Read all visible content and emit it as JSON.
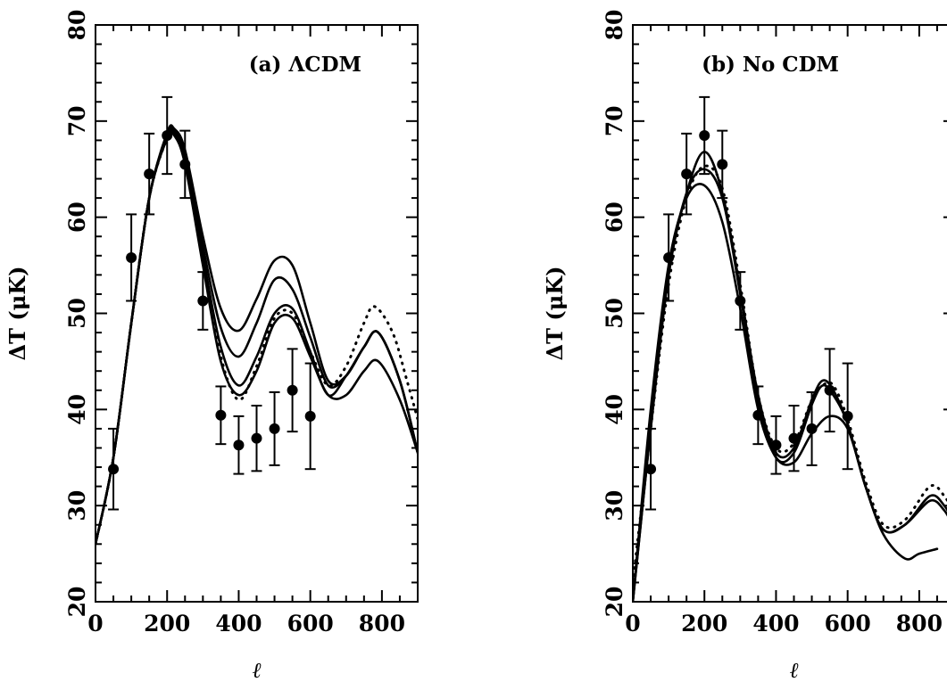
{
  "chart_data": [
    {
      "type": "line",
      "title": "(a) ΛCDM",
      "xlabel": "ℓ",
      "ylabel": "ΔT (μK)",
      "xlim": [
        0,
        900
      ],
      "ylim": [
        20,
        80
      ],
      "xticks": [
        "0",
        "200",
        "400",
        "600",
        "800"
      ],
      "yticks": [
        "20",
        "30",
        "40",
        "50",
        "60",
        "70",
        "80"
      ],
      "grid": false,
      "legend": "none",
      "data_points": {
        "x": [
          50,
          100,
          150,
          200,
          250,
          300,
          350,
          400,
          450,
          500,
          550,
          600
        ],
        "y": [
          33.8,
          55.8,
          64.5,
          68.5,
          65.5,
          51.3,
          39.4,
          36.3,
          37,
          38,
          42,
          39.3
        ],
        "err": [
          4.2,
          4.5,
          4.2,
          4,
          3.5,
          3,
          3,
          3,
          3.4,
          3.8,
          4.3,
          5.5
        ]
      },
      "series": [
        {
          "style": "solid",
          "x": [
            0,
            50,
            100,
            150,
            200,
            220,
            250,
            300,
            350,
            400,
            450,
            500,
            550,
            600,
            650,
            700,
            750,
            790,
            850,
            900
          ],
          "y": [
            26,
            35,
            49,
            62,
            68.8,
            69.2,
            67,
            58,
            50.5,
            48.2,
            51.5,
            55.5,
            55,
            49,
            43,
            43.5,
            46.5,
            48,
            43,
            35.5
          ]
        },
        {
          "style": "solid",
          "x": [
            0,
            50,
            100,
            150,
            200,
            220,
            250,
            300,
            350,
            400,
            450,
            500,
            550,
            600,
            650,
            700,
            750,
            790,
            850,
            900
          ],
          "y": [
            26,
            35,
            49,
            62,
            68.6,
            69,
            66.5,
            57,
            48.5,
            45.5,
            49,
            53.5,
            52.5,
            47.5,
            42.5,
            43.5,
            46.5,
            48,
            43,
            35.5
          ]
        },
        {
          "style": "solid",
          "x": [
            0,
            50,
            100,
            150,
            200,
            220,
            250,
            300,
            350,
            400,
            450,
            500,
            550,
            600,
            650,
            700,
            750,
            790,
            850,
            900
          ],
          "y": [
            26,
            35,
            49,
            62,
            68.4,
            68.8,
            66,
            56,
            46.5,
            42.5,
            45.5,
            50,
            50.5,
            46,
            41.5,
            43.5,
            46.5,
            48,
            43,
            35.5
          ]
        },
        {
          "style": "solid",
          "x": [
            0,
            50,
            100,
            150,
            200,
            220,
            250,
            300,
            350,
            400,
            450,
            500,
            550,
            600,
            650,
            700,
            750,
            790,
            850,
            900
          ],
          "y": [
            26,
            35,
            49,
            62,
            68.2,
            68.5,
            65.5,
            55,
            45,
            41.5,
            44,
            49,
            49.5,
            45.5,
            41.5,
            41.5,
            44,
            45,
            41,
            35.5
          ]
        },
        {
          "style": "dotted",
          "x": [
            0,
            50,
            100,
            150,
            200,
            220,
            250,
            300,
            350,
            400,
            450,
            500,
            550,
            600,
            650,
            700,
            750,
            780,
            830,
            870,
            900
          ],
          "y": [
            26,
            35,
            49,
            62,
            68.2,
            68.7,
            66,
            55.5,
            45.5,
            41,
            44.5,
            49.5,
            50,
            46,
            42.5,
            44.5,
            49,
            50.7,
            48,
            43,
            39
          ]
        }
      ]
    },
    {
      "type": "line",
      "title": "(b) No CDM",
      "xlabel": "ℓ",
      "ylabel": "ΔT (μK)",
      "xlim": [
        0,
        900
      ],
      "ylim": [
        20,
        80
      ],
      "xticks": [
        "0",
        "200",
        "400",
        "600",
        "800"
      ],
      "yticks": [
        "20",
        "30",
        "40",
        "50",
        "60",
        "70",
        "80"
      ],
      "grid": false,
      "legend": "none",
      "data_points": {
        "x": [
          50,
          100,
          150,
          200,
          250,
          300,
          350,
          400,
          450,
          500,
          550,
          600
        ],
        "y": [
          33.8,
          55.8,
          64.5,
          68.5,
          65.5,
          51.3,
          39.4,
          36.3,
          37,
          38,
          42,
          39.3
        ],
        "err": [
          4.2,
          4.5,
          4.2,
          4,
          3.5,
          3,
          3,
          3,
          3.4,
          3.8,
          4.3,
          5.5
        ]
      },
      "series": [
        {
          "style": "solid",
          "x": [
            0,
            50,
            100,
            150,
            200,
            250,
            300,
            350,
            400,
            450,
            500,
            530,
            560,
            600,
            650,
            700,
            760,
            830,
            870,
            900
          ],
          "y": [
            20,
            38,
            54,
            62.5,
            66.8,
            62.5,
            52.5,
            41.5,
            35.5,
            36,
            41,
            43,
            42,
            38.5,
            32,
            27.5,
            28,
            31,
            30,
            28
          ]
        },
        {
          "style": "solid",
          "x": [
            0,
            50,
            100,
            150,
            200,
            250,
            300,
            350,
            400,
            450,
            500,
            530,
            560,
            600,
            650,
            700,
            760,
            830,
            870,
            900
          ],
          "y": [
            20,
            38,
            54,
            62.5,
            65,
            62,
            52,
            41,
            35,
            35.5,
            40.5,
            42.5,
            41.5,
            38.5,
            32,
            27.5,
            28,
            30.5,
            29.5,
            27.5
          ]
        },
        {
          "style": "solid",
          "x": [
            0,
            50,
            100,
            150,
            200,
            250,
            300,
            350,
            400,
            450,
            500,
            550,
            600,
            650,
            700,
            760,
            800,
            850
          ],
          "y": [
            20,
            40,
            55,
            62,
            63.3,
            59.5,
            50.5,
            40,
            35,
            34.5,
            37.5,
            39.3,
            38,
            32,
            27,
            24.5,
            25,
            25.5
          ]
        },
        {
          "style": "dotted",
          "x": [
            0,
            50,
            100,
            150,
            200,
            250,
            300,
            350,
            400,
            450,
            500,
            530,
            560,
            600,
            650,
            700,
            760,
            830,
            870,
            900
          ],
          "y": [
            22,
            38,
            53,
            62,
            65.3,
            63,
            53,
            41.5,
            36,
            36.5,
            41,
            42.5,
            42.5,
            39,
            32.5,
            28,
            28.5,
            32,
            31,
            29
          ]
        }
      ]
    }
  ]
}
